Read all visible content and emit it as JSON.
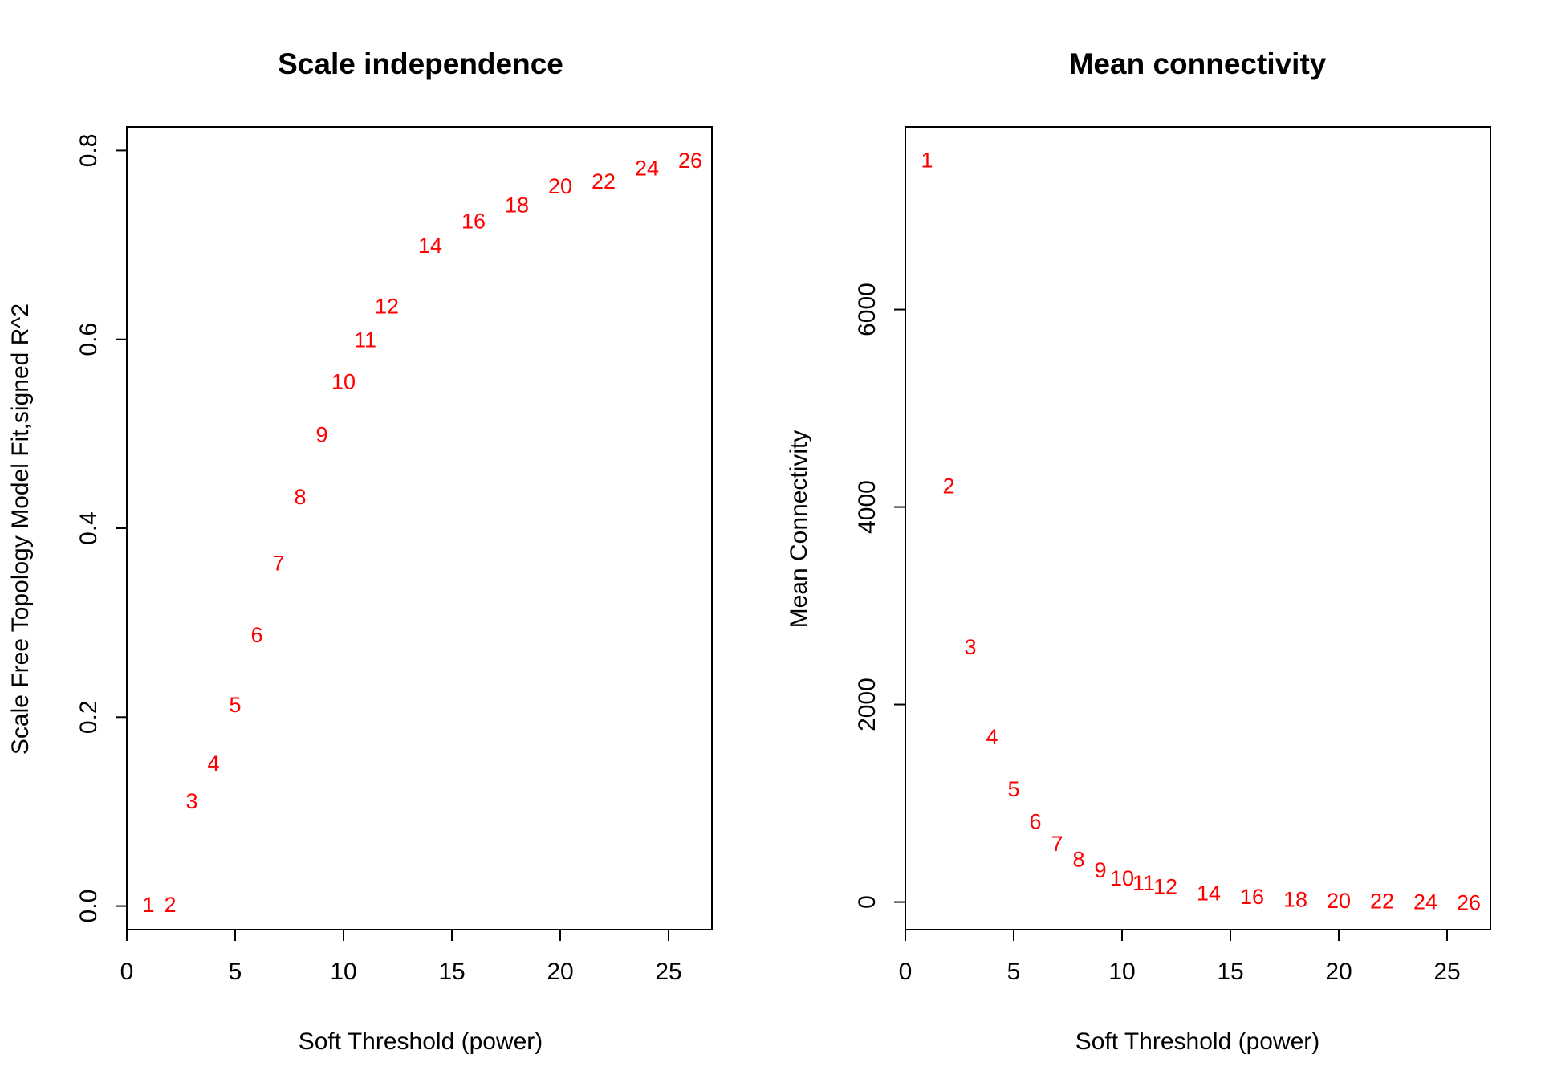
{
  "chart_data": [
    {
      "type": "scatter",
      "title": "Scale independence",
      "xlabel": "Soft Threshold (power)",
      "ylabel": "Scale Free Topology Model Fit,signed R^2",
      "xlim": [
        0,
        27
      ],
      "ylim": [
        -0.025,
        0.825
      ],
      "xticks": [
        0,
        5,
        10,
        15,
        20,
        25
      ],
      "yticks": [
        0.0,
        0.2,
        0.4,
        0.6,
        0.8
      ],
      "ytick_labels": [
        "0.0",
        "0.2",
        "0.4",
        "0.6",
        "0.8"
      ],
      "point_color": "#ff0000",
      "grid": false,
      "legend": "none",
      "x": [
        1,
        2,
        3,
        4,
        5,
        6,
        7,
        8,
        9,
        10,
        11,
        12,
        14,
        16,
        18,
        20,
        22,
        24,
        26
      ],
      "y": [
        0.002,
        0.002,
        0.112,
        0.152,
        0.214,
        0.288,
        0.364,
        0.434,
        0.5,
        0.556,
        0.6,
        0.636,
        0.7,
        0.726,
        0.743,
        0.763,
        0.768,
        0.782,
        0.79
      ],
      "labels": [
        "1",
        "2",
        "3",
        "4",
        "5",
        "6",
        "7",
        "8",
        "9",
        "10",
        "11",
        "12",
        "14",
        "16",
        "18",
        "20",
        "22",
        "24",
        "26"
      ]
    },
    {
      "type": "scatter",
      "title": "Mean connectivity",
      "xlabel": "Soft Threshold (power)",
      "ylabel": "Mean Connectivity",
      "xlim": [
        0,
        27
      ],
      "ylim": [
        -280,
        7850
      ],
      "xticks": [
        0,
        5,
        10,
        15,
        20,
        25
      ],
      "yticks": [
        0,
        2000,
        4000,
        6000
      ],
      "ytick_labels": [
        "0",
        "2000",
        "4000",
        "6000"
      ],
      "point_color": "#ff0000",
      "grid": false,
      "legend": "none",
      "x": [
        1,
        2,
        3,
        4,
        5,
        6,
        7,
        8,
        9,
        10,
        11,
        12,
        14,
        16,
        18,
        20,
        22,
        24,
        26
      ],
      "y": [
        7520,
        4220,
        2590,
        1680,
        1150,
        820,
        600,
        440,
        330,
        250,
        200,
        165,
        100,
        60,
        35,
        20,
        15,
        10,
        0
      ],
      "labels": [
        "1",
        "2",
        "3",
        "4",
        "5",
        "6",
        "7",
        "8",
        "9",
        "10",
        "11",
        "12",
        "14",
        "16",
        "18",
        "20",
        "22",
        "24",
        "26"
      ]
    }
  ]
}
